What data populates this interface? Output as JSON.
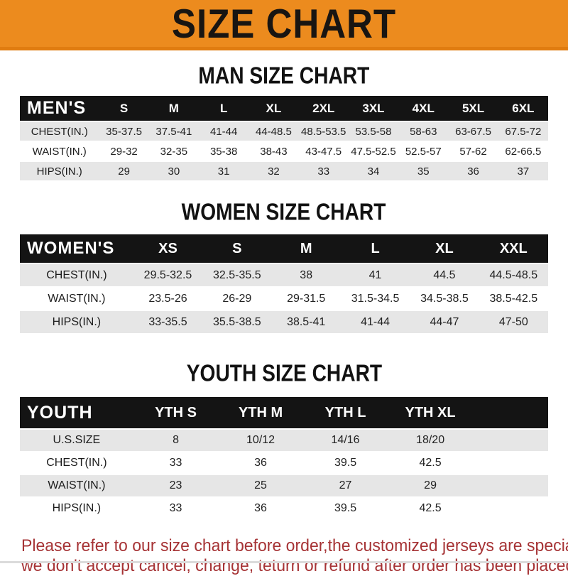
{
  "banner": {
    "title": "SIZE CHART",
    "bg_color": "#EC8B1E",
    "text_color": "#181512"
  },
  "sections": [
    {
      "heading": "MAN SIZE CHART",
      "table": {
        "corner": "MEN'S",
        "columns": [
          "S",
          "M",
          "L",
          "XL",
          "2XL",
          "3XL",
          "4XL",
          "5XL",
          "6XL"
        ],
        "rows": [
          {
            "label": "CHEST(IN.)",
            "values": [
              "35-37.5",
              "37.5-41",
              "41-44",
              "44-48.5",
              "48.5-53.5",
              "53.5-58",
              "58-63",
              "63-67.5",
              "67.5-72"
            ]
          },
          {
            "label": "WAIST(IN.)",
            "values": [
              "29-32",
              "32-35",
              "35-38",
              "38-43",
              "43-47.5",
              "47.5-52.5",
              "52.5-57",
              "57-62",
              "62-66.5"
            ]
          },
          {
            "label": "HIPS(IN.)",
            "values": [
              "29",
              "30",
              "31",
              "32",
              "33",
              "34",
              "35",
              "36",
              "37"
            ]
          }
        ]
      }
    },
    {
      "heading": "WOMEN SIZE CHART",
      "table": {
        "corner": "WOMEN'S",
        "columns": [
          "XS",
          "S",
          "M",
          "L",
          "XL",
          "XXL"
        ],
        "rows": [
          {
            "label": "CHEST(IN.)",
            "values": [
              "29.5-32.5",
              "32.5-35.5",
              "38",
              "41",
              "44.5",
              "44.5-48.5"
            ]
          },
          {
            "label": "WAIST(IN.)",
            "values": [
              "23.5-26",
              "26-29",
              "29-31.5",
              "31.5-34.5",
              "34.5-38.5",
              "38.5-42.5"
            ]
          },
          {
            "label": "HIPS(IN.)",
            "values": [
              "33-35.5",
              "35.5-38.5",
              "38.5-41",
              "41-44",
              "44-47",
              "47-50"
            ]
          }
        ]
      }
    },
    {
      "heading": "YOUTH SIZE CHART",
      "table": {
        "corner": "YOUTH",
        "columns": [
          "YTH S",
          "YTH M",
          "YTH L",
          "YTH XL"
        ],
        "rows": [
          {
            "label": "U.S.SIZE",
            "values": [
              "8",
              "10/12",
              "14/16",
              "18/20"
            ]
          },
          {
            "label": "CHEST(IN.)",
            "values": [
              "33",
              "36",
              "39.5",
              "42.5"
            ]
          },
          {
            "label": "WAIST(IN.)",
            "values": [
              "23",
              "25",
              "27",
              "29"
            ]
          },
          {
            "label": "HIPS(IN.)",
            "values": [
              "33",
              "36",
              "39.5",
              "42.5"
            ]
          }
        ]
      }
    }
  ],
  "footer": {
    "line1": "Please refer to our size chart before order,the customized jerseys are special products,",
    "line2": "we don't accept cancel, change, teturn or refund after order has been placed!",
    "text_color": "#A63335"
  },
  "colors": {
    "table_header_bg": "#141414",
    "table_stripe_bg": "#E6E6E6",
    "banner_orange": "#EC8B1E"
  }
}
